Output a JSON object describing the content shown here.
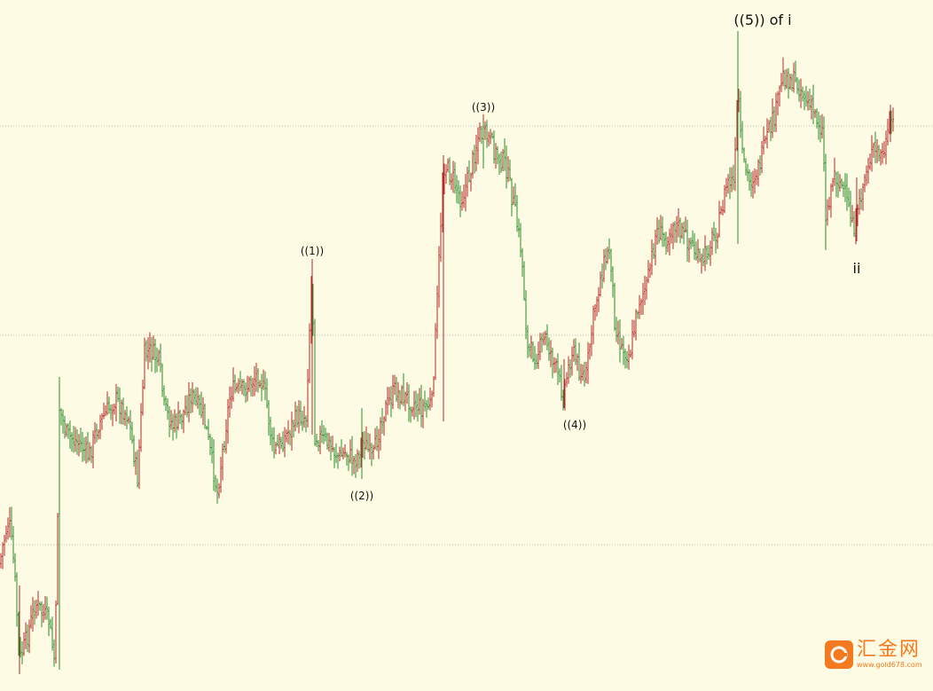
{
  "chart_data": {
    "type": "ohlc",
    "title": "",
    "xlabel": "",
    "ylabel": "",
    "ylim": [
      0,
      779
    ],
    "grid": "horizontal-dotted",
    "colors": {
      "up": "#b22a2a",
      "down": "#2e8b2e",
      "grid": "#bdbdbd",
      "background": "#fdfbe3"
    },
    "anchors": [
      [
        0,
        635
      ],
      [
        2,
        620
      ],
      [
        10,
        585
      ],
      [
        16,
        640
      ],
      [
        22,
        745
      ],
      [
        30,
        720
      ],
      [
        40,
        680
      ],
      [
        55,
        700
      ],
      [
        62,
        750
      ],
      [
        67,
        460
      ],
      [
        75,
        490
      ],
      [
        90,
        500
      ],
      [
        100,
        515
      ],
      [
        110,
        480
      ],
      [
        130,
        450
      ],
      [
        145,
        470
      ],
      [
        155,
        540
      ],
      [
        163,
        400
      ],
      [
        170,
        395
      ],
      [
        180,
        410
      ],
      [
        185,
        460
      ],
      [
        195,
        480
      ],
      [
        205,
        470
      ],
      [
        215,
        445
      ],
      [
        230,
        470
      ],
      [
        245,
        555
      ],
      [
        260,
        440
      ],
      [
        275,
        440
      ],
      [
        292,
        420
      ],
      [
        300,
        450
      ],
      [
        308,
        510
      ],
      [
        320,
        495
      ],
      [
        335,
        470
      ],
      [
        345,
        470
      ],
      [
        352,
        295
      ],
      [
        355,
        490
      ],
      [
        370,
        500
      ],
      [
        382,
        515
      ],
      [
        390,
        510
      ],
      [
        400,
        520
      ],
      [
        410,
        495
      ],
      [
        420,
        520
      ],
      [
        430,
        470
      ],
      [
        445,
        440
      ],
      [
        460,
        450
      ],
      [
        475,
        460
      ],
      [
        487,
        455
      ],
      [
        492,
        360
      ],
      [
        500,
        185
      ],
      [
        510,
        200
      ],
      [
        520,
        225
      ],
      [
        530,
        195
      ],
      [
        540,
        150
      ],
      [
        550,
        155
      ],
      [
        560,
        175
      ],
      [
        570,
        185
      ],
      [
        580,
        235
      ],
      [
        588,
        285
      ],
      [
        595,
        395
      ],
      [
        605,
        400
      ],
      [
        615,
        380
      ],
      [
        625,
        410
      ],
      [
        635,
        445
      ],
      [
        645,
        395
      ],
      [
        655,
        420
      ],
      [
        660,
        430
      ],
      [
        670,
        350
      ],
      [
        680,
        300
      ],
      [
        688,
        280
      ],
      [
        693,
        360
      ],
      [
        700,
        390
      ],
      [
        710,
        400
      ],
      [
        720,
        340
      ],
      [
        730,
        320
      ],
      [
        740,
        260
      ],
      [
        750,
        270
      ],
      [
        760,
        250
      ],
      [
        770,
        265
      ],
      [
        780,
        275
      ],
      [
        790,
        300
      ],
      [
        800,
        275
      ],
      [
        810,
        255
      ],
      [
        820,
        205
      ],
      [
        828,
        205
      ],
      [
        832,
        95
      ],
      [
        836,
        175
      ],
      [
        845,
        205
      ],
      [
        855,
        190
      ],
      [
        865,
        155
      ],
      [
        875,
        125
      ],
      [
        882,
        85
      ],
      [
        892,
        90
      ],
      [
        900,
        95
      ],
      [
        910,
        115
      ],
      [
        920,
        130
      ],
      [
        928,
        150
      ],
      [
        931,
        245
      ],
      [
        940,
        195
      ],
      [
        950,
        210
      ],
      [
        955,
        230
      ],
      [
        965,
        260
      ],
      [
        970,
        225
      ],
      [
        978,
        185
      ],
      [
        985,
        170
      ],
      [
        995,
        175
      ],
      [
        1000,
        160
      ],
      [
        1005,
        135
      ],
      [
        1008,
        140
      ]
    ],
    "gridlines": [
      142,
      378,
      614
    ],
    "annotations": [
      {
        "text": "((1))",
        "x": 352,
        "y": 287,
        "size": "small",
        "anchor": "bar-top"
      },
      {
        "text": "((2))",
        "x": 408,
        "y": 563,
        "size": "small",
        "anchor": "bar-bottom"
      },
      {
        "text": "((3))",
        "x": 545,
        "y": 125,
        "size": "small",
        "anchor": "bar-top"
      },
      {
        "text": "((4))",
        "x": 648,
        "y": 483,
        "size": "small",
        "anchor": "bar-bottom"
      },
      {
        "text": "((5)) of i",
        "x": 860,
        "y": 28,
        "size": "large",
        "anchor": "bar-top"
      },
      {
        "text": "ii",
        "x": 966,
        "y": 308,
        "size": "large",
        "anchor": "bar-bottom"
      }
    ]
  },
  "watermark": {
    "logo_text": "汇金网",
    "url_text": "www.gold678.com"
  }
}
